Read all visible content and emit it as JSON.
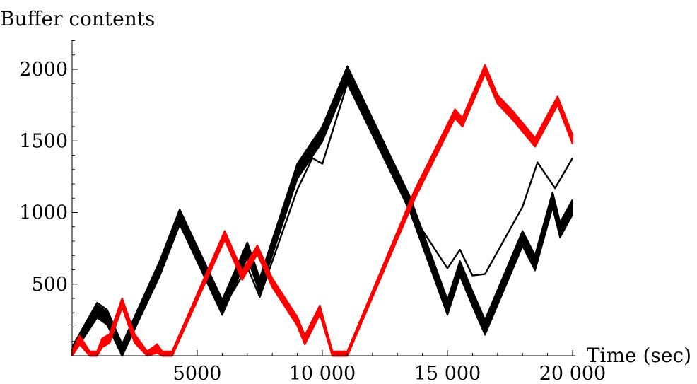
{
  "chart_data": {
    "type": "line",
    "title": "",
    "xlabel": "Time (sec)",
    "ylabel": "Buffer contents",
    "xlim": [
      0,
      20000
    ],
    "ylim": [
      0,
      2200
    ],
    "x_ticks": [
      5000,
      10000,
      15000,
      20000
    ],
    "x_tick_labels": [
      "5000",
      "10 000",
      "15 000",
      "20 000"
    ],
    "y_ticks": [
      500,
      1000,
      1500,
      2000
    ],
    "y_tick_labels": [
      "500",
      "1000",
      "1500",
      "2000"
    ],
    "grid": false,
    "legend": "none",
    "series": [
      {
        "color": "#000000",
        "band_halfwidth": 45,
        "offsets": [
          -40,
          -20,
          0,
          20,
          40,
          60
        ],
        "points": [
          [
            0,
            0
          ],
          [
            1000,
            310
          ],
          [
            1400,
            260
          ],
          [
            2000,
            20
          ],
          [
            3500,
            600
          ],
          [
            4300,
            960
          ],
          [
            6000,
            330
          ],
          [
            7000,
            730
          ],
          [
            7500,
            480
          ],
          [
            9000,
            1280
          ],
          [
            10000,
            1540
          ],
          [
            11000,
            1960
          ],
          [
            13500,
            1050
          ],
          [
            15000,
            330
          ],
          [
            15500,
            600
          ],
          [
            16000,
            390
          ],
          [
            16500,
            190
          ],
          [
            18000,
            810
          ],
          [
            18500,
            640
          ],
          [
            19200,
            1080
          ],
          [
            19500,
            870
          ],
          [
            20000,
            1030
          ]
        ]
      },
      {
        "color": "#000000",
        "band_halfwidth": 8,
        "offsets": [
          0
        ],
        "points": [
          [
            6000,
            320
          ],
          [
            7000,
            620
          ],
          [
            7500,
            410
          ],
          [
            9000,
            1160
          ],
          [
            9600,
            1380
          ],
          [
            10000,
            1340
          ],
          [
            11000,
            1900
          ],
          [
            13500,
            1010
          ],
          [
            15000,
            610
          ],
          [
            15500,
            740
          ],
          [
            16000,
            560
          ],
          [
            16500,
            570
          ],
          [
            18000,
            1040
          ],
          [
            18600,
            1350
          ],
          [
            19300,
            1170
          ],
          [
            20000,
            1380
          ]
        ]
      },
      {
        "color": "#ff0000",
        "band_halfwidth": 30,
        "offsets": [
          -30,
          -15,
          0,
          15,
          30
        ],
        "points": [
          [
            0,
            0
          ],
          [
            300,
            110
          ],
          [
            700,
            0
          ],
          [
            1000,
            0
          ],
          [
            1200,
            90
          ],
          [
            1500,
            120
          ],
          [
            2000,
            370
          ],
          [
            2500,
            120
          ],
          [
            3000,
            0
          ],
          [
            3400,
            50
          ],
          [
            3600,
            0
          ],
          [
            4000,
            0
          ],
          [
            6100,
            840
          ],
          [
            6800,
            560
          ],
          [
            7400,
            740
          ],
          [
            8000,
            510
          ],
          [
            9000,
            240
          ],
          [
            9300,
            110
          ],
          [
            9900,
            320
          ],
          [
            10400,
            0
          ],
          [
            11000,
            0
          ],
          [
            13700,
            1130
          ],
          [
            15300,
            1690
          ],
          [
            15600,
            1630
          ],
          [
            16500,
            2000
          ],
          [
            17000,
            1790
          ],
          [
            17600,
            1680
          ],
          [
            18500,
            1490
          ],
          [
            19400,
            1780
          ],
          [
            20000,
            1510
          ]
        ]
      }
    ]
  }
}
